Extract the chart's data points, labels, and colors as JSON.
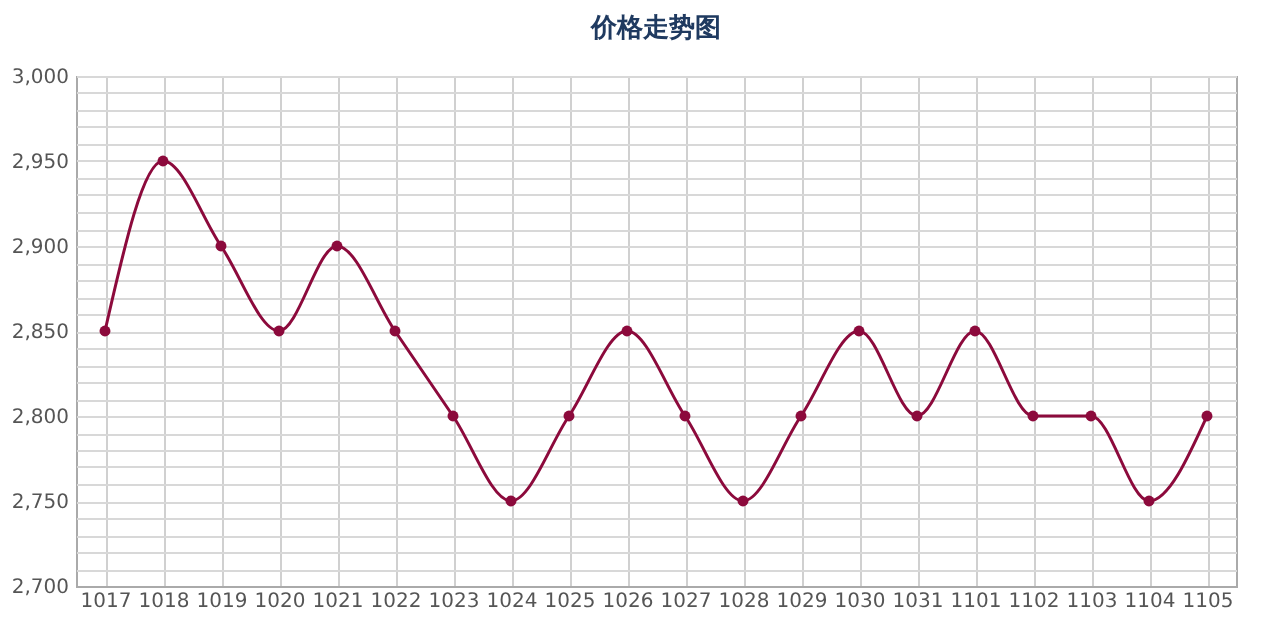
{
  "chart_data": {
    "type": "line",
    "title": "价格走势图",
    "categories": [
      "1017",
      "1018",
      "1019",
      "1020",
      "1021",
      "1022",
      "1023",
      "1024",
      "1025",
      "1026",
      "1027",
      "1028",
      "1029",
      "1030",
      "1031",
      "1101",
      "1102",
      "1103",
      "1104",
      "1105"
    ],
    "series": [
      {
        "color": "#8c0a3c",
        "values": [
          2850,
          2950,
          2900,
          2850,
          2900,
          2850,
          2800,
          2750,
          2800,
          2850,
          2800,
          2750,
          2800,
          2850,
          2800,
          2850,
          2800,
          2800,
          2750,
          2800
        ]
      }
    ],
    "ylim": [
      2700,
      3000
    ],
    "yticks": [
      {
        "value": 2700,
        "label": "2,700"
      },
      {
        "value": 2710,
        "label": null
      },
      {
        "value": 2720,
        "label": null
      },
      {
        "value": 2730,
        "label": null
      },
      {
        "value": 2740,
        "label": null
      },
      {
        "value": 2750,
        "label": "2,750"
      },
      {
        "value": 2760,
        "label": null
      },
      {
        "value": 2770,
        "label": null
      },
      {
        "value": 2780,
        "label": null
      },
      {
        "value": 2790,
        "label": null
      },
      {
        "value": 2800,
        "label": "2,800"
      },
      {
        "value": 2810,
        "label": null
      },
      {
        "value": 2820,
        "label": null
      },
      {
        "value": 2830,
        "label": null
      },
      {
        "value": 2840,
        "label": null
      },
      {
        "value": 2850,
        "label": "2,850"
      },
      {
        "value": 2860,
        "label": null
      },
      {
        "value": 2870,
        "label": null
      },
      {
        "value": 2880,
        "label": null
      },
      {
        "value": 2890,
        "label": null
      },
      {
        "value": 2900,
        "label": "2,900"
      },
      {
        "value": 2910,
        "label": null
      },
      {
        "value": 2920,
        "label": null
      },
      {
        "value": 2930,
        "label": null
      },
      {
        "value": 2940,
        "label": null
      },
      {
        "value": 2950,
        "label": "2,950"
      },
      {
        "value": 2960,
        "label": null
      },
      {
        "value": 2970,
        "label": null
      },
      {
        "value": 2980,
        "label": null
      },
      {
        "value": 2990,
        "label": null
      },
      {
        "value": 3000,
        "label": "3,000"
      }
    ],
    "grid": true,
    "marker": "circle",
    "line_style": "solid"
  }
}
